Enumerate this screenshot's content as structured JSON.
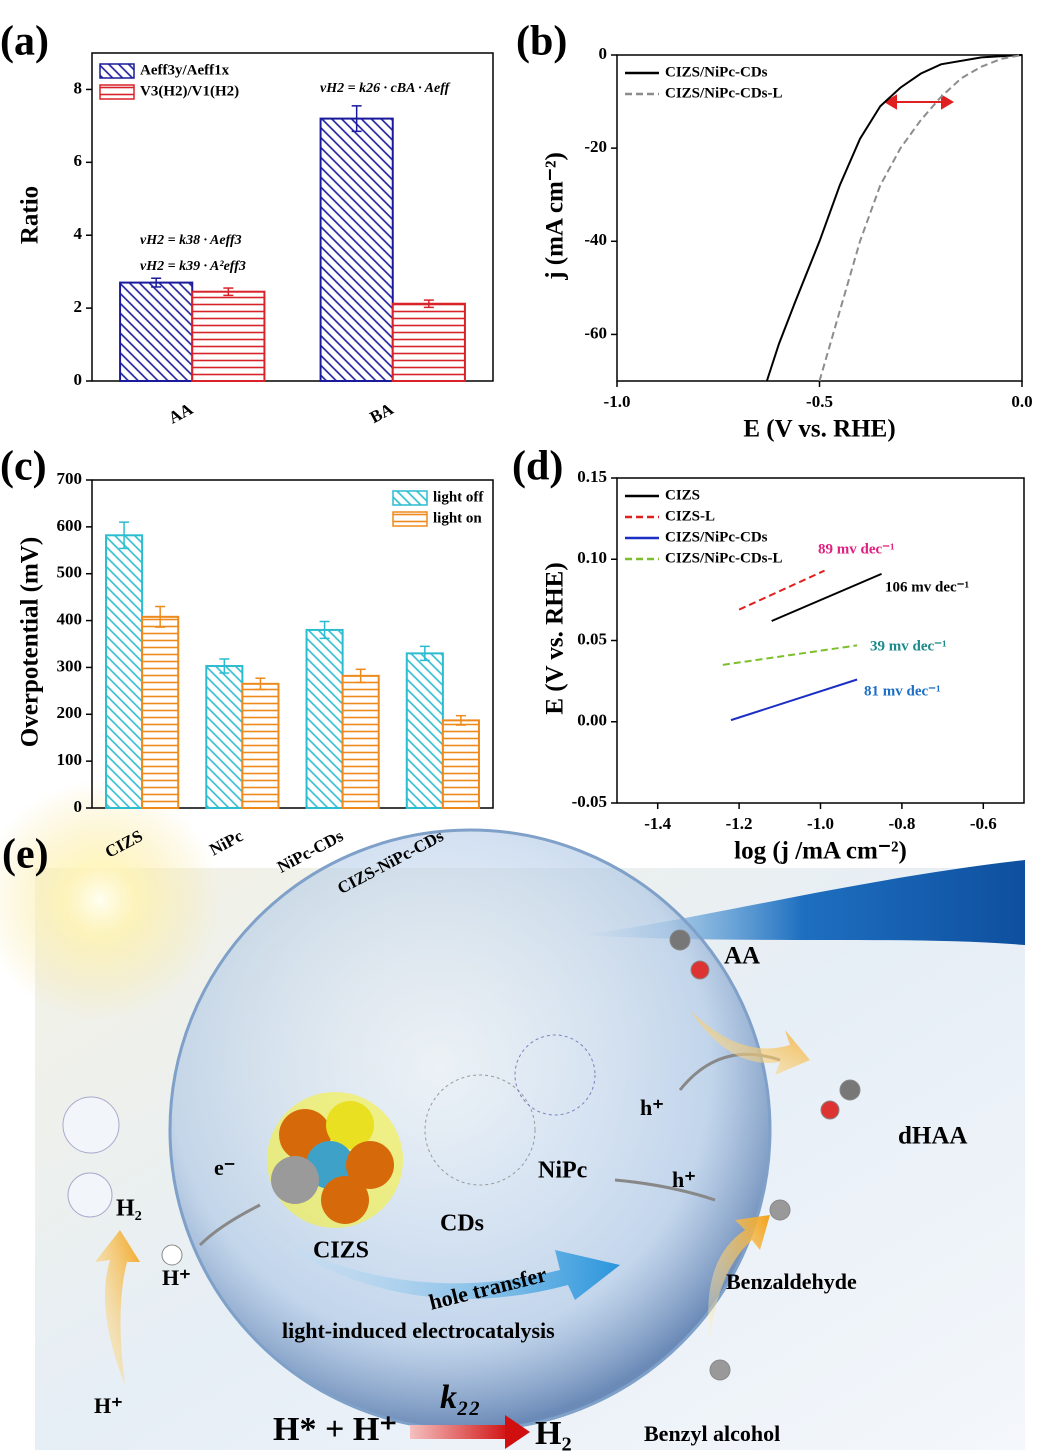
{
  "chart_data": [
    {
      "type": "bar",
      "panel_label": "(a)",
      "y_label": "Ratio",
      "categories": [
        "AA",
        "BA"
      ],
      "series": [
        {
          "name": "Aeff3y/Aeff1x",
          "color": "#1a1a9c",
          "hatch": "diagonal",
          "values": [
            2.7,
            7.2
          ],
          "errors": [
            0.12,
            0.35
          ]
        },
        {
          "name": "V3(H2)/V1(H2)",
          "color": "#d8232a",
          "hatch": "horizontal",
          "values": [
            2.45,
            2.12
          ],
          "errors": [
            0.1,
            0.1
          ]
        }
      ],
      "annotations": [
        "vH2 = k38 · Aeff3",
        "vH2 = k39 · A²eff3",
        "vH2 = k26 · cBA · Aeff"
      ],
      "ylim": [
        0,
        9
      ],
      "yticks": [
        0,
        2,
        4,
        6,
        8
      ],
      "legend": "upper left"
    },
    {
      "type": "line",
      "panel_label": "(b)",
      "x_label": "E (V vs. RHE)",
      "y_label": "j (mA cm⁻²)",
      "series": [
        {
          "name": "CIZS/NiPc-CDs",
          "color": "#000000",
          "dash": false,
          "x": [
            -0.63,
            -0.6,
            -0.56,
            -0.5,
            -0.45,
            -0.4,
            -0.35,
            -0.3,
            -0.25,
            -0.2,
            -0.1,
            0
          ],
          "values": [
            -70,
            -62,
            -53,
            -40,
            -28,
            -18,
            -11,
            -7,
            -4,
            -2,
            -0.5,
            0
          ]
        },
        {
          "name": "CIZS/NiPc-CDs-L",
          "color": "#8c8c8c",
          "dash": true,
          "x": [
            -0.5,
            -0.45,
            -0.4,
            -0.35,
            -0.3,
            -0.25,
            -0.2,
            -0.15,
            -0.1,
            -0.05,
            0
          ],
          "values": [
            -70,
            -55,
            -40,
            -28,
            -20,
            -14,
            -9,
            -5,
            -2.5,
            -0.8,
            0
          ]
        }
      ],
      "xlim": [
        -1,
        0
      ],
      "xticks": [
        {
          "value": -1,
          "label": "-1.0"
        },
        -0.5,
        {
          "value": 0,
          "label": "0.0"
        }
      ],
      "ylim": [
        -70,
        0
      ],
      "yticks": [
        0,
        -20,
        -40,
        -60
      ],
      "legend": "upper left"
    },
    {
      "type": "bar",
      "panel_label": "(c)",
      "y_label": "Overpotential (mV)",
      "categories": [
        "CIZS",
        "NiPc",
        "NiPc-CDs",
        "CIZS-NiPc-CDs"
      ],
      "series": [
        {
          "name": "light off",
          "color": "#2bbcd0",
          "hatch": "diagonal",
          "values": [
            582,
            303,
            380,
            330
          ],
          "errors": [
            28,
            15,
            18,
            15
          ]
        },
        {
          "name": "light on",
          "color": "#ee8a1c",
          "hatch": "horizontal",
          "values": [
            408,
            265,
            282,
            187
          ],
          "errors": [
            22,
            12,
            14,
            10
          ]
        }
      ],
      "ylim": [
        0,
        700
      ],
      "yticks": [
        0,
        100,
        200,
        300,
        400,
        500,
        600,
        700
      ],
      "legend": "upper right"
    },
    {
      "type": "line",
      "panel_label": "(d)",
      "x_label": "log (j /mA cm⁻²)",
      "y_label": "E (V vs. RHE)",
      "series": [
        {
          "name": "CIZS",
          "color": "#000000",
          "dash": false,
          "x": [
            -1.12,
            -0.85
          ],
          "values": [
            0.062,
            0.091
          ]
        },
        {
          "name": "CIZS-L",
          "color": "#e0201f",
          "dash": true,
          "x": [
            -1.2,
            -0.99
          ],
          "values": [
            0.069,
            0.093
          ]
        },
        {
          "name": "CIZS/NiPc-CDs",
          "color": "#1c2fc4",
          "dash": false,
          "x": [
            -1.22,
            -0.91
          ],
          "values": [
            0.001,
            0.026
          ]
        },
        {
          "name": "CIZS/NiPc-CDs-L",
          "color": "#7cbf2a",
          "dash": true,
          "x": [
            -1.24,
            -0.91
          ],
          "values": [
            0.035,
            0.047
          ]
        }
      ],
      "annotations": [
        "89 mv dec⁻¹",
        "106 mv dec⁻¹",
        "39 mv dec⁻¹",
        "81 mv dec⁻¹"
      ],
      "xlim": [
        -1.5,
        -0.5
      ],
      "xticks": [
        -1.4,
        -1.2,
        {
          "value": -1,
          "label": "-1.0"
        },
        -0.8,
        -0.6
      ],
      "ylim": [
        -0.05,
        0.15
      ],
      "yticks": [
        -0.05,
        {
          "value": 0,
          "label": "0.00"
        },
        0.05,
        {
          "value": 0.1,
          "label": "0.10"
        },
        0.15
      ],
      "legend": "upper left"
    }
  ],
  "illustration": {
    "panel_label": "(e)",
    "aa": "AA",
    "dhaa": "dHAA",
    "hole1": "h⁺",
    "hole2": "h⁺",
    "nipc": "NiPc",
    "cds": "CDs",
    "cizs": "CIZS",
    "electron": "e⁻",
    "h2_left": "H₂",
    "proton1": "H⁺",
    "proton2": "H⁺",
    "hole_transfer": "hole transfer",
    "caption": "light-induced electrocatalysis",
    "benzaldehyde": "Benzaldehyde",
    "benzyl_alcohol": "Benzyl alcohol",
    "reaction_left": "H* + H⁺",
    "rate_constant": "k₂₂",
    "reaction_right": "H₂"
  }
}
